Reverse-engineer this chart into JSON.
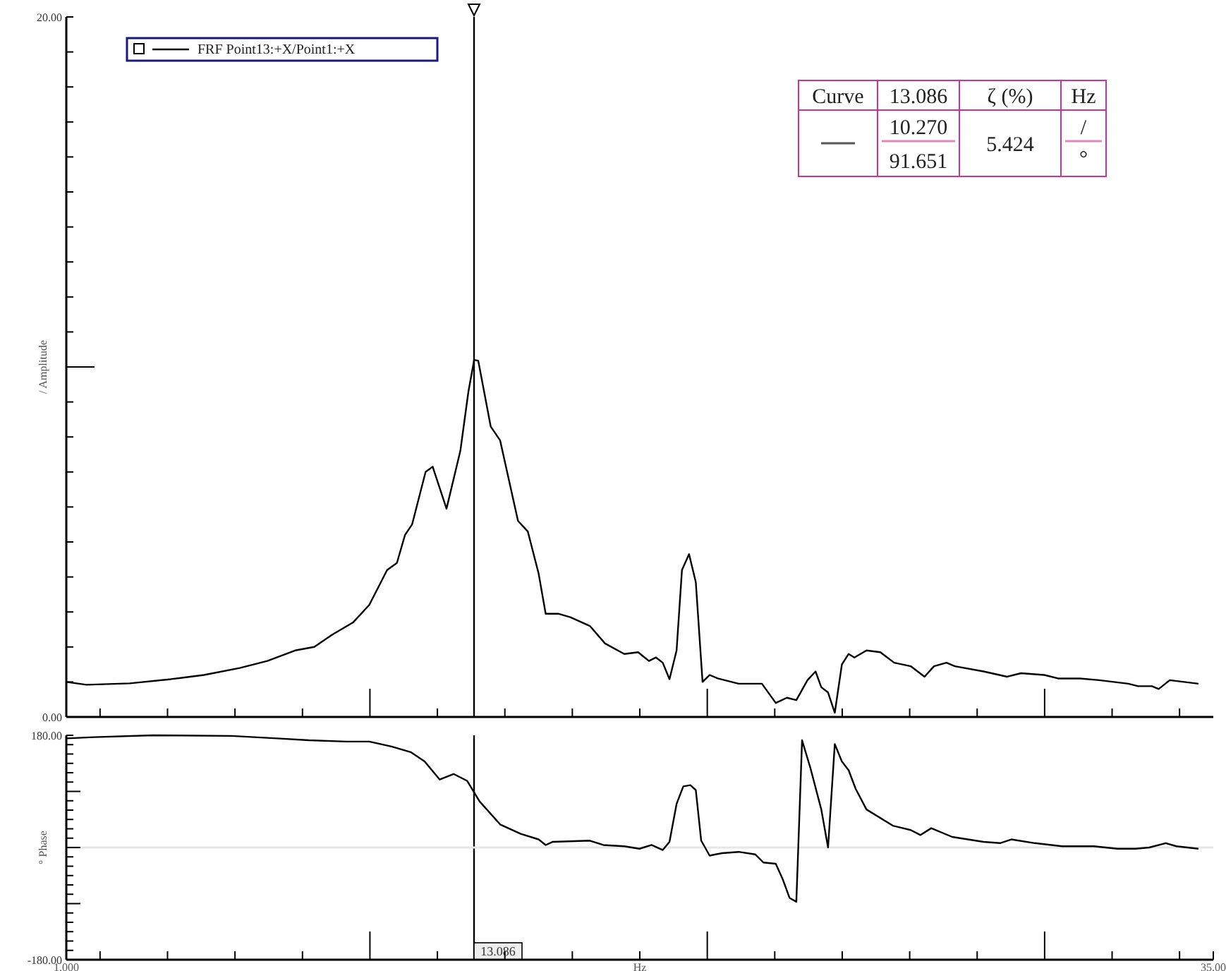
{
  "chart_data": [
    {
      "type": "line",
      "ylabel": "/ Amplitude",
      "legend": "top left",
      "tick_labels": "y",
      "grid": false,
      "xlim": [
        1,
        35
      ],
      "xticks": [
        {
          "value": 1,
          "label": null
        },
        {
          "value": 2,
          "label": null
        },
        {
          "value": 4,
          "label": null
        },
        {
          "value": 6,
          "label": null
        },
        {
          "value": 8,
          "label": null
        },
        {
          "value": 10,
          "label": null
        },
        {
          "value": 12,
          "label": null
        },
        {
          "value": 14,
          "label": null
        },
        {
          "value": 16,
          "label": null
        },
        {
          "value": 18,
          "label": null
        },
        {
          "value": 20,
          "label": null
        },
        {
          "value": 22,
          "label": null
        },
        {
          "value": 24,
          "label": null
        },
        {
          "value": 26,
          "label": null
        },
        {
          "value": 28,
          "label": null
        },
        {
          "value": 30,
          "label": null
        },
        {
          "value": 32,
          "label": null
        },
        {
          "value": 34,
          "label": null
        }
      ],
      "ylim": [
        0,
        20
      ],
      "yticks": [
        {
          "value": 0,
          "label": "0.00"
        },
        {
          "value": 1,
          "label": null
        },
        {
          "value": 2,
          "label": null
        },
        {
          "value": 3,
          "label": null
        },
        {
          "value": 4,
          "label": null
        },
        {
          "value": 5,
          "label": null
        },
        {
          "value": 6,
          "label": null
        },
        {
          "value": 7,
          "label": null
        },
        {
          "value": 8,
          "label": null
        },
        {
          "value": 9,
          "label": null
        },
        {
          "value": 10,
          "label": null
        },
        {
          "value": 11,
          "label": null
        },
        {
          "value": 12,
          "label": null
        },
        {
          "value": 13,
          "label": null
        },
        {
          "value": 14,
          "label": null
        },
        {
          "value": 15,
          "label": null
        },
        {
          "value": 16,
          "label": null
        },
        {
          "value": 17,
          "label": null
        },
        {
          "value": 18,
          "label": null
        },
        {
          "value": 19,
          "label": null
        },
        {
          "value": 20,
          "label": "20.00"
        }
      ],
      "ref_lines": [
        {
          "axis": "x",
          "value": 13.086,
          "color": "#000000"
        }
      ],
      "annotations": [
        "Curve",
        "13.086",
        "ζ (%)",
        "Hz",
        "10.270",
        "91.651",
        "5.424",
        "/",
        "°"
      ],
      "series": [
        {
          "name": "FRF Point13:+X/Point1:+X",
          "color": "#000000",
          "x": [
            1.0,
            1.6,
            2.88,
            4.1,
            5.08,
            6.14,
            6.96,
            7.78,
            8.35,
            8.88,
            9.5,
            9.98,
            10.51,
            10.8,
            11.04,
            11.25,
            11.65,
            11.86,
            12.27,
            12.68,
            12.92,
            13.09,
            13.21,
            13.58,
            13.86,
            14.39,
            14.68,
            15.0,
            15.21,
            15.58,
            15.94,
            16.52,
            16.97,
            17.54,
            17.95,
            18.27,
            18.48,
            18.68,
            18.88,
            19.09,
            19.25,
            19.46,
            19.66,
            19.86,
            20.07,
            20.31,
            20.93,
            21.62,
            22.03,
            22.36,
            22.64,
            22.97,
            23.21,
            23.38,
            23.58,
            23.78,
            23.99,
            24.19,
            24.36,
            24.72,
            25.13,
            25.54,
            26.03,
            26.44,
            26.72,
            27.09,
            27.34,
            28.19,
            28.89,
            29.3,
            29.99,
            30.4,
            31.05,
            31.62,
            32.48,
            32.77,
            33.18,
            33.38,
            33.71,
            34.56
          ],
          "values": [
            1.0,
            0.92,
            0.96,
            1.08,
            1.2,
            1.4,
            1.6,
            1.9,
            2.0,
            2.35,
            2.7,
            3.2,
            4.2,
            4.4,
            5.2,
            5.5,
            7.0,
            7.15,
            5.95,
            7.6,
            9.3,
            10.2,
            10.18,
            8.3,
            7.9,
            5.6,
            5.3,
            4.1,
            2.95,
            2.95,
            2.85,
            2.6,
            2.1,
            1.8,
            1.85,
            1.6,
            1.7,
            1.55,
            1.08,
            1.9,
            4.2,
            4.65,
            3.85,
            1.0,
            1.2,
            1.1,
            0.95,
            0.95,
            0.4,
            0.55,
            0.48,
            1.05,
            1.3,
            0.85,
            0.7,
            0.12,
            1.5,
            1.8,
            1.7,
            1.9,
            1.85,
            1.55,
            1.45,
            1.15,
            1.45,
            1.55,
            1.45,
            1.3,
            1.15,
            1.25,
            1.2,
            1.1,
            1.1,
            1.05,
            0.95,
            0.88,
            0.88,
            0.8,
            1.05,
            0.95
          ]
        }
      ]
    },
    {
      "type": "line",
      "ylabel": "° Phase",
      "xlabel": "Hz",
      "grid": false,
      "xlim": [
        1,
        35
      ],
      "xticks": [
        {
          "value": 1,
          "label": "1.000"
        },
        {
          "value": 2,
          "label": null
        },
        {
          "value": 4,
          "label": null
        },
        {
          "value": 6,
          "label": null
        },
        {
          "value": 8,
          "label": null
        },
        {
          "value": 10,
          "label": null
        },
        {
          "value": 12,
          "label": null
        },
        {
          "value": 14,
          "label": null
        },
        {
          "value": 16,
          "label": null
        },
        {
          "value": 18,
          "label": null
        },
        {
          "value": 20,
          "label": null
        },
        {
          "value": 22,
          "label": null
        },
        {
          "value": 24,
          "label": null
        },
        {
          "value": 26,
          "label": null
        },
        {
          "value": 28,
          "label": null
        },
        {
          "value": 30,
          "label": null
        },
        {
          "value": 32,
          "label": null
        },
        {
          "value": 34,
          "label": null
        },
        {
          "value": 35,
          "label": "35.00"
        }
      ],
      "ylim": [
        -180,
        180
      ],
      "yticks": [
        {
          "value": -180,
          "label": "-180.00"
        },
        {
          "value": -165,
          "label": null
        },
        {
          "value": -150,
          "label": null
        },
        {
          "value": -135,
          "label": null
        },
        {
          "value": -120,
          "label": null
        },
        {
          "value": -105,
          "label": null
        },
        {
          "value": -90,
          "label": null
        },
        {
          "value": -75,
          "label": null
        },
        {
          "value": -60,
          "label": null
        },
        {
          "value": -45,
          "label": null
        },
        {
          "value": -30,
          "label": null
        },
        {
          "value": -15,
          "label": null
        },
        {
          "value": 0,
          "label": null
        },
        {
          "value": 15,
          "label": null
        },
        {
          "value": 30,
          "label": null
        },
        {
          "value": 45,
          "label": null
        },
        {
          "value": 60,
          "label": null
        },
        {
          "value": 75,
          "label": null
        },
        {
          "value": 90,
          "label": null
        },
        {
          "value": 105,
          "label": null
        },
        {
          "value": 120,
          "label": null
        },
        {
          "value": 135,
          "label": null
        },
        {
          "value": 150,
          "label": null
        },
        {
          "value": 165,
          "label": null
        },
        {
          "value": 180,
          "label": "180.00"
        }
      ],
      "ref_lines": [
        {
          "axis": "x",
          "value": 13.086,
          "label": "13.086",
          "color": "#000000"
        },
        {
          "axis": "y",
          "value": 0,
          "color": "#e6e6e6"
        }
      ],
      "series": [
        {
          "color": "#000000",
          "x": [
            1.0,
            1.82,
            3.57,
            5.9,
            7.25,
            8.19,
            9.29,
            9.98,
            10.64,
            11.21,
            11.62,
            12.07,
            12.48,
            12.88,
            13.25,
            13.86,
            14.47,
            15.0,
            15.21,
            15.41,
            16.52,
            16.92,
            17.54,
            17.99,
            18.35,
            18.68,
            18.88,
            19.09,
            19.29,
            19.5,
            19.66,
            19.82,
            20.07,
            20.44,
            20.93,
            21.42,
            21.66,
            22.03,
            22.23,
            22.44,
            22.64,
            22.81,
            23.05,
            23.38,
            23.58,
            23.78,
            23.99,
            24.19,
            24.4,
            24.72,
            25.5,
            26.03,
            26.32,
            26.64,
            27.26,
            28.19,
            28.68,
            29.01,
            29.71,
            30.52,
            31.46,
            32.16,
            32.69,
            33.1,
            33.59,
            33.91,
            34.56
          ],
          "values": [
            175,
            177,
            180,
            179,
            175,
            172,
            170,
            170,
            162,
            153,
            138,
            109,
            118,
            107,
            74,
            37,
            22,
            13,
            4,
            9,
            11,
            4,
            2,
            -2,
            4,
            -4,
            9,
            70,
            98,
            100,
            92,
            11,
            -13,
            -9,
            -7,
            -11,
            -24,
            -26,
            -50,
            -81,
            -87,
            172,
            129,
            61,
            0,
            166,
            138,
            124,
            94,
            61,
            35,
            28,
            20,
            31,
            17,
            9,
            7,
            13,
            7,
            2,
            2,
            -2,
            -2,
            0,
            7,
            2,
            -2
          ]
        }
      ]
    }
  ]
}
